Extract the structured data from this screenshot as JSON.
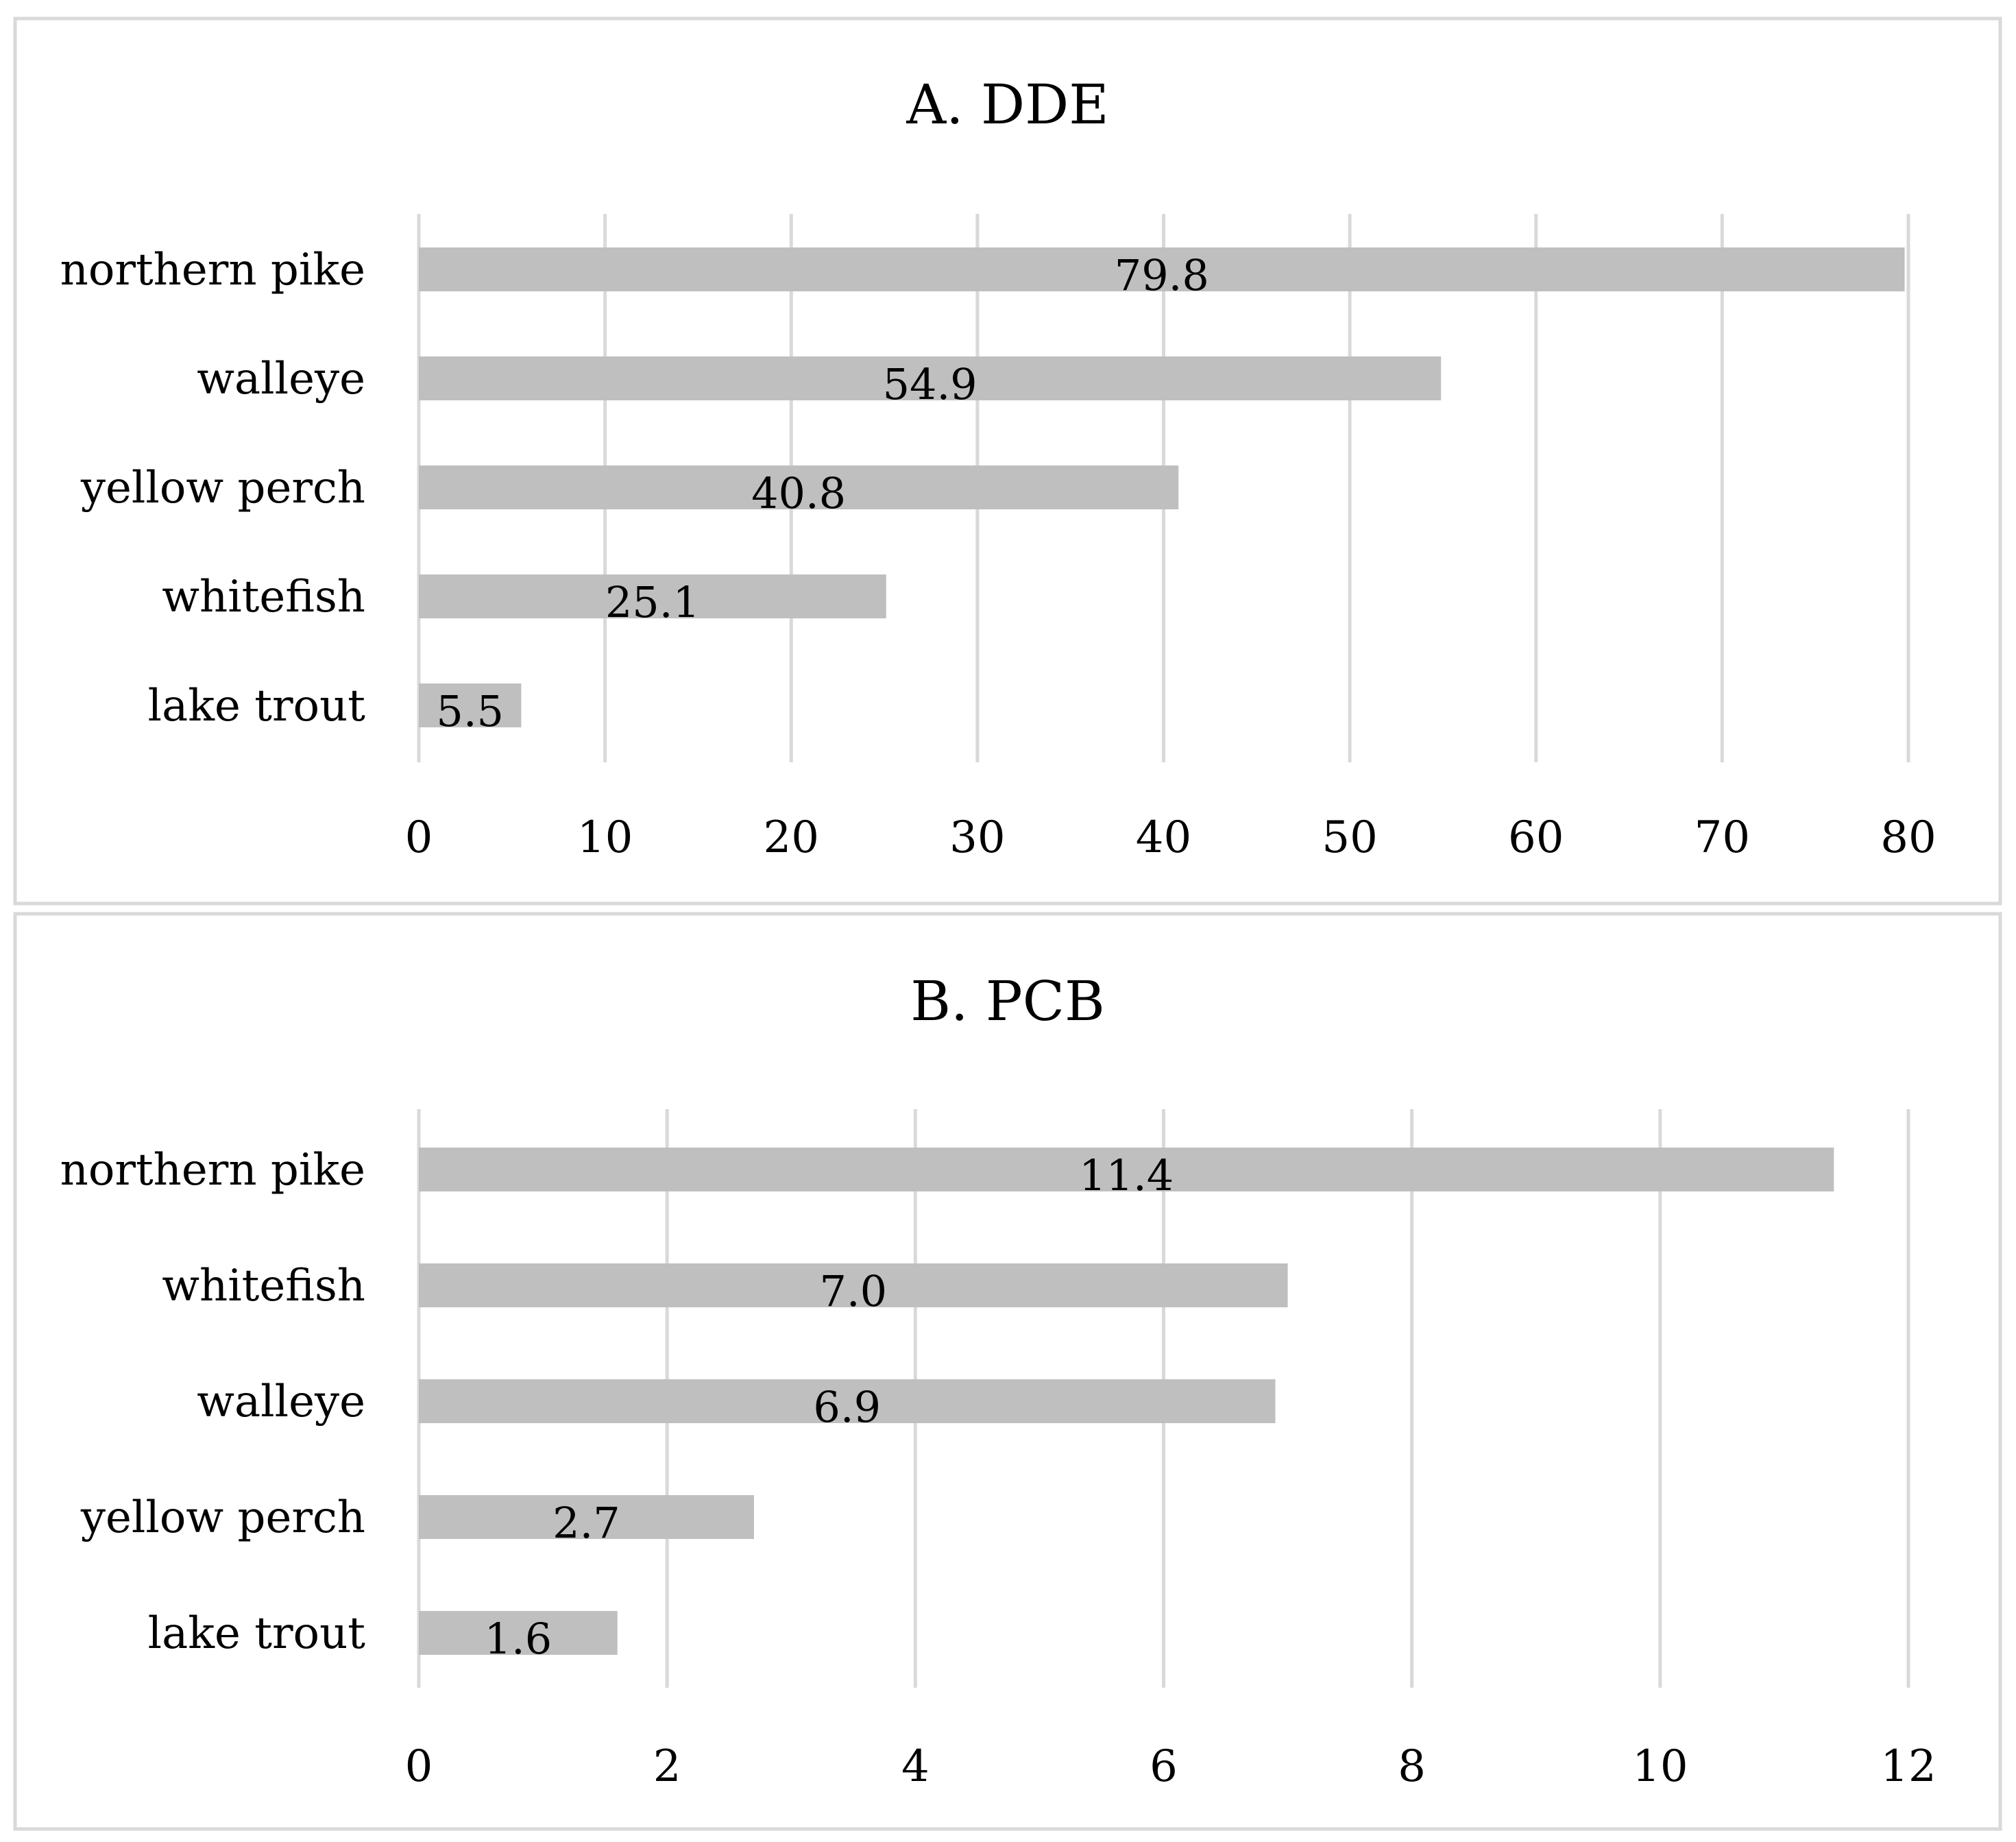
{
  "chart_data": [
    {
      "type": "bar",
      "orientation": "horizontal",
      "title": "A. DDE",
      "categories": [
        "northern pike",
        "walleye",
        "yellow perch",
        "whitefish",
        "lake trout"
      ],
      "values": [
        79.8,
        54.9,
        40.8,
        25.1,
        5.5
      ],
      "data_labels": [
        "79.8",
        "54.9",
        "40.8",
        "25.1",
        "5.5"
      ],
      "xlim": [
        0,
        80
      ],
      "x_ticks": [
        0,
        10,
        20,
        30,
        40,
        50,
        60,
        70,
        80
      ],
      "x_tick_labels": [
        "0",
        "10",
        "20",
        "30",
        "40",
        "50",
        "60",
        "70",
        "80"
      ],
      "grid": "vertical",
      "legend": "none",
      "bar_color": "#bfbfbf"
    },
    {
      "type": "bar",
      "orientation": "horizontal",
      "title": "B. PCB",
      "categories": [
        "northern pike",
        "whitefish",
        "walleye",
        "yellow perch",
        "lake trout"
      ],
      "values": [
        11.4,
        7.0,
        6.9,
        2.7,
        1.6
      ],
      "data_labels": [
        "11.4",
        "7.0",
        "6.9",
        "2.7",
        "1.6"
      ],
      "xlim": [
        0,
        12
      ],
      "x_ticks": [
        0,
        2,
        4,
        6,
        8,
        10,
        12
      ],
      "x_tick_labels": [
        "0",
        "2",
        "4",
        "6",
        "8",
        "10",
        "12"
      ],
      "grid": "vertical",
      "legend": "none",
      "bar_color": "#bfbfbf"
    }
  ]
}
